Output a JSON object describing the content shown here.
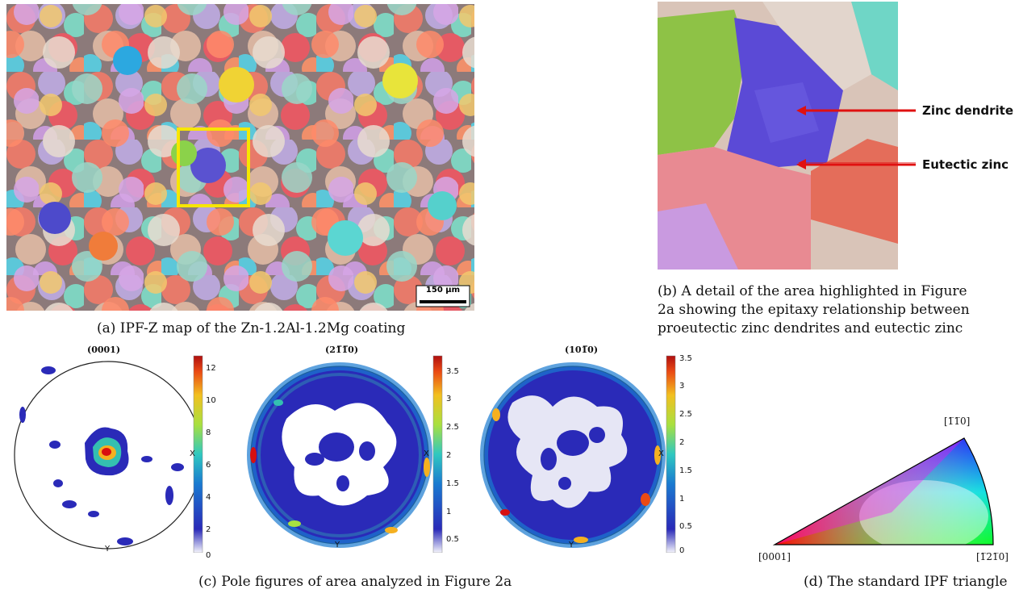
{
  "panel_a": {
    "scale_bar": "150 µm",
    "caption": "(a) IPF-Z map of the Zn-1.2Al-1.2Mg coating"
  },
  "panel_b": {
    "labels": [
      "Zinc dendrite",
      "Eutectic zinc"
    ],
    "caption_lines": [
      "(b) A detail of the area highlighted in Figure",
      "2a showing the epitaxy relationship between",
      "proeutectic zinc dendrites and eutectic zinc"
    ]
  },
  "panel_c": {
    "caption": "(c) Pole figures of area analyzed in Figure 2a",
    "axis_x": "X",
    "axis_y": "Y",
    "pole_figures": [
      {
        "title": "(0001)",
        "colorbar_ticks": [
          "12",
          "10",
          "8",
          "6",
          "4",
          "2",
          "0"
        ]
      },
      {
        "title": "(21̅1̅0)",
        "colorbar_ticks": [
          "3.5",
          "3",
          "2.5",
          "2",
          "1.5",
          "1",
          "0.5"
        ]
      },
      {
        "title": "(101̅0)",
        "colorbar_ticks": [
          "3.5",
          "3",
          "2.5",
          "2",
          "1.5",
          "1",
          "0.5",
          "0"
        ]
      }
    ]
  },
  "panel_d": {
    "caption": "(d) The standard IPF triangle",
    "vertices": [
      "[1̅1̅0]",
      "[0001]",
      "[1̅21̅0]"
    ]
  },
  "colors": {
    "highlight": "#f7e600",
    "arrow": "#e01010"
  }
}
